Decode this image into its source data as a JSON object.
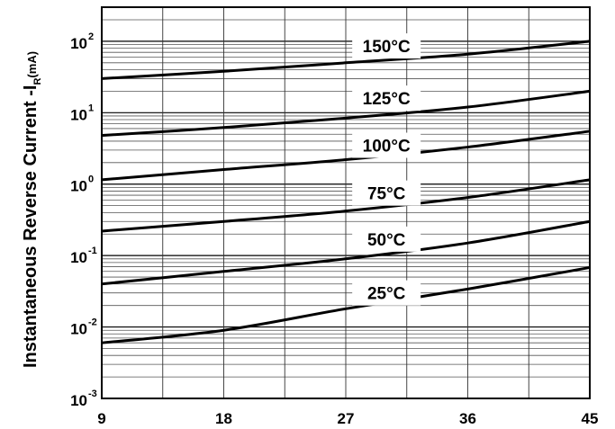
{
  "chart_data": {
    "type": "line",
    "title": "",
    "xlabel": "",
    "ylabel": "Instantaneous Reverse Current -I",
    "ylabel_subscript": "R",
    "ylabel_unit": "(mA)",
    "y_scale": "log",
    "xlim": [
      9,
      45
    ],
    "ylim": [
      0.001,
      300
    ],
    "grid": true,
    "x_ticks": [
      9,
      18,
      27,
      36,
      45
    ],
    "x_tick_labels": [
      "9",
      "18",
      "27",
      "36",
      "45"
    ],
    "y_ticks": [
      {
        "value": 0.001,
        "base": "10",
        "exp": "-3"
      },
      {
        "value": 0.01,
        "base": "10",
        "exp": "-2"
      },
      {
        "value": 0.1,
        "base": "10",
        "exp": "-1"
      },
      {
        "value": 1,
        "base": "10",
        "exp": "0"
      },
      {
        "value": 10,
        "base": "10",
        "exp": "1"
      },
      {
        "value": 100,
        "base": "10",
        "exp": "2"
      }
    ],
    "series": [
      {
        "name": "150°C",
        "x": [
          9,
          18,
          27,
          36,
          45
        ],
        "y": [
          30,
          38,
          50,
          66,
          100
        ],
        "label_at": [
          30,
          86
        ]
      },
      {
        "name": "125°C",
        "x": [
          9,
          18,
          27,
          36,
          45
        ],
        "y": [
          4.8,
          6.2,
          8.4,
          12,
          20
        ],
        "label_at": [
          30,
          16
        ]
      },
      {
        "name": "100°C",
        "x": [
          9,
          18,
          27,
          36,
          45
        ],
        "y": [
          1.15,
          1.6,
          2.2,
          3.3,
          5.5
        ],
        "label_at": [
          30,
          3.5
        ]
      },
      {
        "name": "75°C",
        "x": [
          9,
          18,
          27,
          36,
          45
        ],
        "y": [
          0.22,
          0.3,
          0.42,
          0.65,
          1.15
        ],
        "label_at": [
          30,
          0.75
        ]
      },
      {
        "name": "50°C",
        "x": [
          9,
          18,
          27,
          36,
          45
        ],
        "y": [
          0.04,
          0.06,
          0.09,
          0.15,
          0.3
        ],
        "label_at": [
          30,
          0.17
        ]
      },
      {
        "name": "25°C",
        "x": [
          9,
          18,
          27,
          36,
          45
        ],
        "y": [
          0.006,
          0.009,
          0.018,
          0.034,
          0.068
        ],
        "label_at": [
          30,
          0.03
        ]
      }
    ]
  }
}
